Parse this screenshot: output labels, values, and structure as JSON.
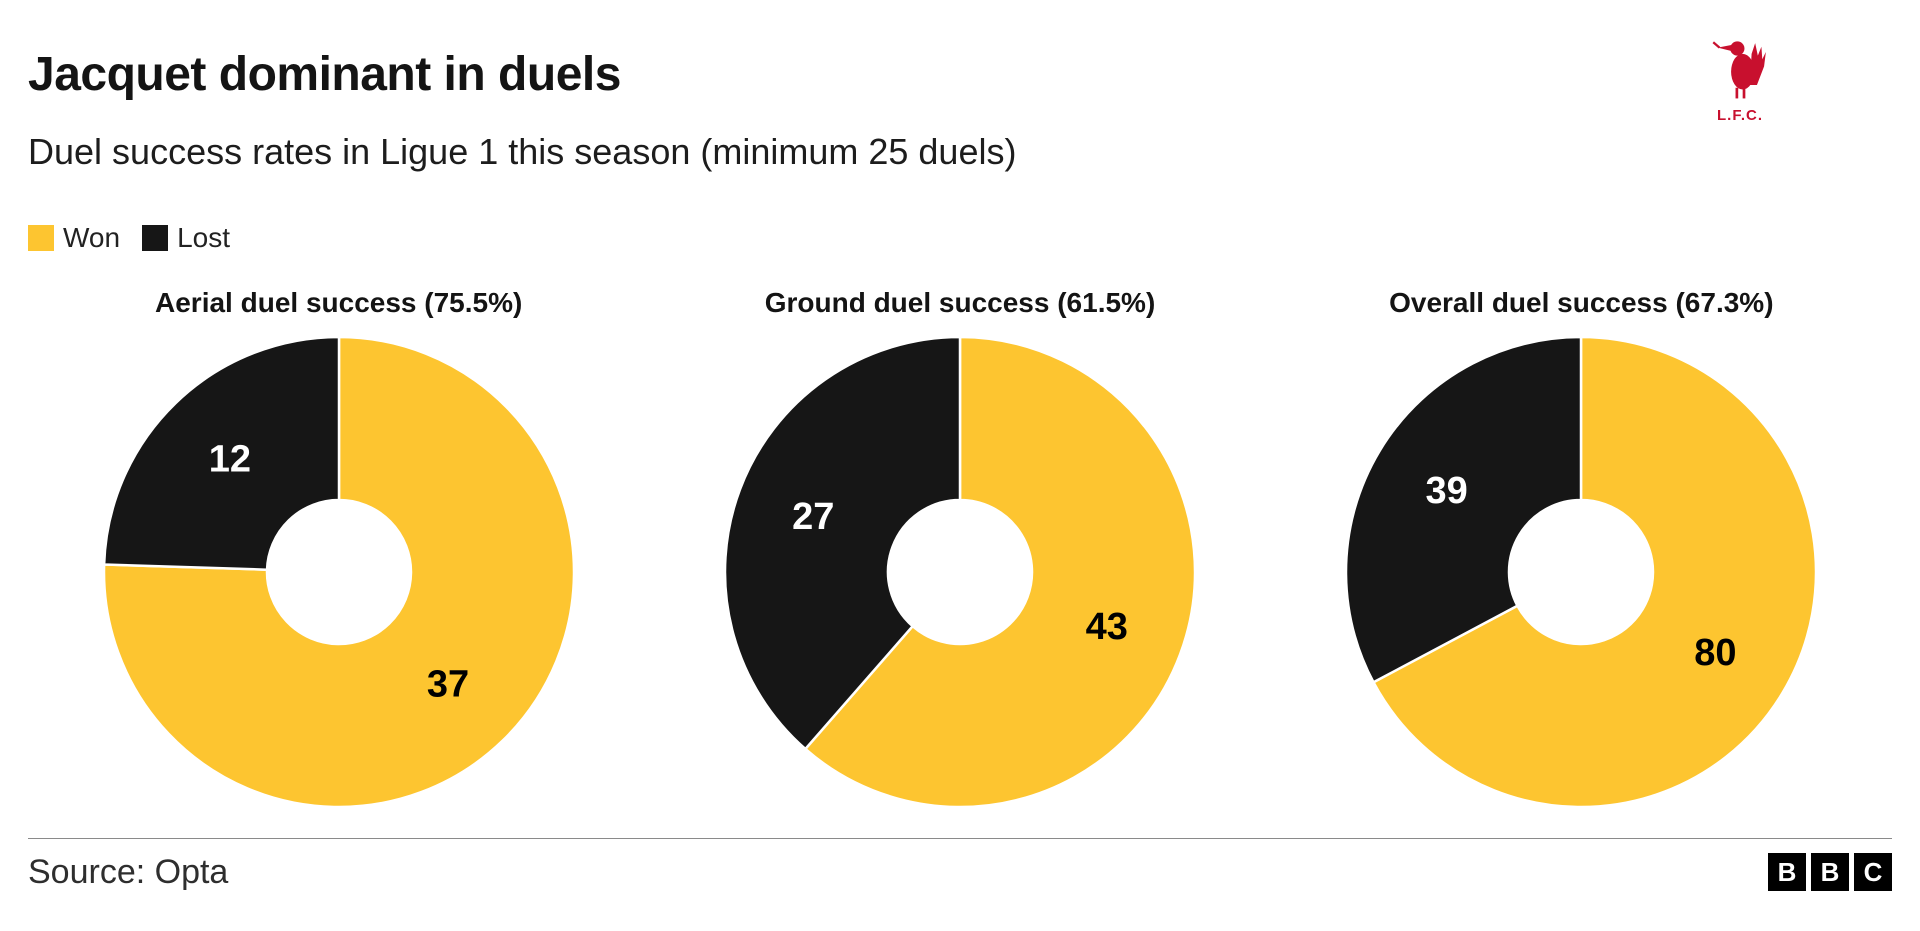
{
  "header": {
    "title": "Jacquet dominant in duels",
    "subtitle": "Duel success rates in Ligue 1 this season (minimum 25 duels)",
    "badge_label": "L.F.C."
  },
  "legend": {
    "items": [
      {
        "label": "Won",
        "color": "#fdc530"
      },
      {
        "label": "Lost",
        "color": "#161616"
      }
    ]
  },
  "colors": {
    "won": "#fdc530",
    "lost": "#161616",
    "crest_red": "#C8102E"
  },
  "chart_data": [
    {
      "type": "pie",
      "donut": true,
      "title": "Aerial duel success (75.5%)",
      "categories": [
        "Won",
        "Lost"
      ],
      "values": [
        37,
        12
      ],
      "colors": [
        "#fdc530",
        "#161616"
      ],
      "label_colors": [
        "#000000",
        "#ffffff"
      ],
      "start_angle": "12 o'clock",
      "direction": "clockwise"
    },
    {
      "type": "pie",
      "donut": true,
      "title": "Ground duel success (61.5%)",
      "categories": [
        "Won",
        "Lost"
      ],
      "values": [
        43,
        27
      ],
      "colors": [
        "#fdc530",
        "#161616"
      ],
      "label_colors": [
        "#000000",
        "#ffffff"
      ],
      "start_angle": "12 o'clock",
      "direction": "clockwise"
    },
    {
      "type": "pie",
      "donut": true,
      "title": "Overall duel success (67.3%)",
      "categories": [
        "Won",
        "Lost"
      ],
      "values": [
        80,
        39
      ],
      "colors": [
        "#fdc530",
        "#161616"
      ],
      "label_colors": [
        "#000000",
        "#ffffff"
      ],
      "start_angle": "12 o'clock",
      "direction": "clockwise"
    }
  ],
  "footer": {
    "source": "Source: Opta",
    "logo_letters": [
      "B",
      "B",
      "C"
    ]
  }
}
